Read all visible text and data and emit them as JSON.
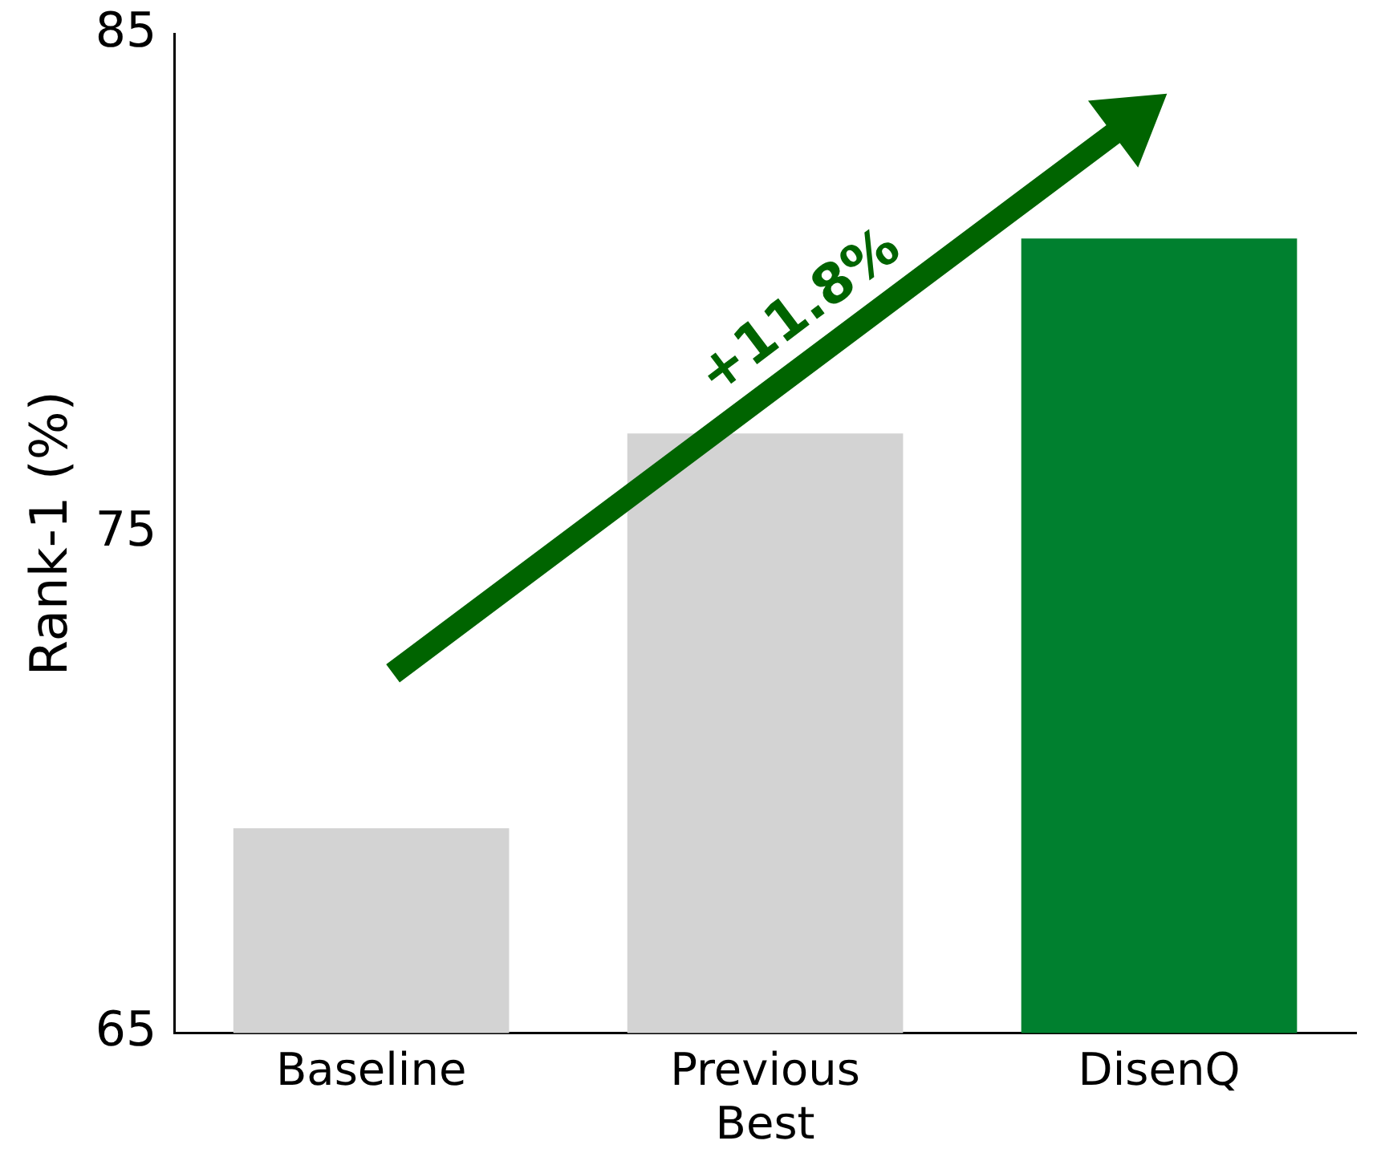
{
  "chart_data": {
    "type": "bar",
    "ylabel": "Rank-1 (%)",
    "categories": [
      "Baseline",
      "Previous Best",
      "DisenQ"
    ],
    "values": [
      69.1,
      77.0,
      80.9
    ],
    "colors": [
      "#d3d3d3",
      "#d3d3d3",
      "#00802f"
    ],
    "ylim": [
      65,
      85
    ],
    "yticks": [
      65,
      75,
      85
    ],
    "grid": false,
    "legend": false,
    "annotations": [
      "+11.8%"
    ]
  }
}
